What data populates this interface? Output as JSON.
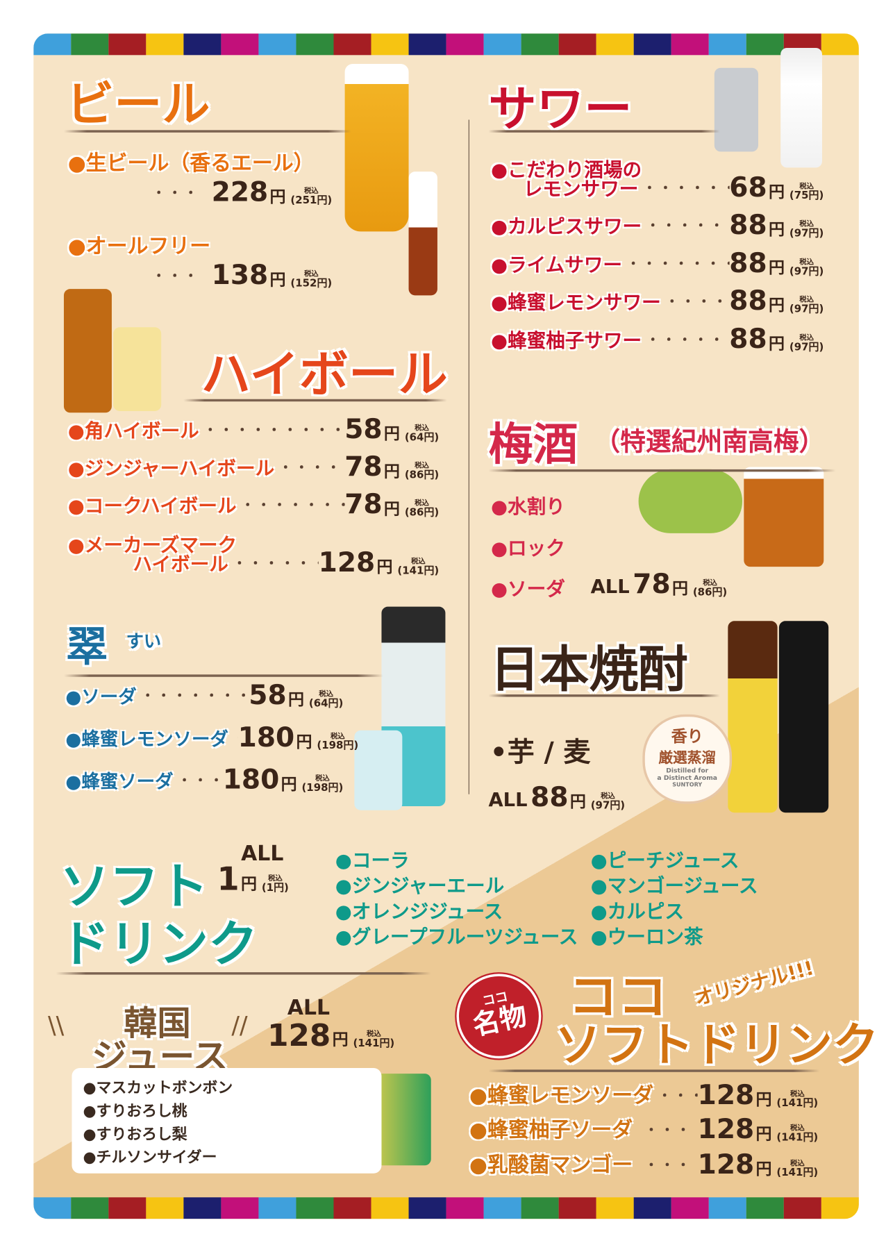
{
  "colors": {
    "stripe": [
      "#3fa0dc",
      "#2f8a3c",
      "#a51e23",
      "#f6c412",
      "#1c1f6e",
      "#c2107a"
    ],
    "beer": "#e8700f",
    "highball": "#e5461b",
    "sui": "#1b6fa0",
    "sour": "#c8102e",
    "ume": "#d4284a",
    "shochu": "#3a2418",
    "soft": "#0e9a8a",
    "korean": "#7a5530",
    "coco": "#d27312",
    "price": "#3a2418"
  },
  "common": {
    "yen": "円",
    "tax_label": "税込",
    "all": "ALL"
  },
  "beer": {
    "title": "ビール",
    "items": [
      {
        "name": "●生ビール（香るエール）",
        "price": "228",
        "tax": "(251円)"
      },
      {
        "name": "●オールフリー",
        "price": "138",
        "tax": "(152円)"
      }
    ]
  },
  "highball": {
    "title": "ハイボール",
    "items": [
      {
        "name": "●角ハイボール",
        "price": "58",
        "tax": "(64円)"
      },
      {
        "name": "●ジンジャーハイボール",
        "price": "78",
        "tax": "(86円)"
      },
      {
        "name": "●コークハイボール",
        "price": "78",
        "tax": "(86円)"
      },
      {
        "name": "●メーカーズマーク",
        "name2": "ハイボール",
        "price": "128",
        "tax": "(141円)"
      }
    ]
  },
  "sui": {
    "title": "翠",
    "reading": "すい",
    "items": [
      {
        "name": "●ソーダ",
        "price": "58",
        "tax": "(64円)"
      },
      {
        "name": "●蜂蜜レモンソーダ",
        "price": "180",
        "tax": "(198円)"
      },
      {
        "name": "●蜂蜜ソーダ",
        "price": "180",
        "tax": "(198円)"
      }
    ]
  },
  "sour": {
    "title": "サワー",
    "items": [
      {
        "name": "●こだわり酒場の",
        "name2": "レモンサワー",
        "price": "68",
        "tax": "(75円)"
      },
      {
        "name": "●カルピスサワー",
        "price": "88",
        "tax": "(97円)"
      },
      {
        "name": "●ライムサワー",
        "price": "88",
        "tax": "(97円)"
      },
      {
        "name": "●蜂蜜レモンサワー",
        "price": "88",
        "tax": "(97円)"
      },
      {
        "name": "●蜂蜜柚子サワー",
        "price": "88",
        "tax": "(97円)"
      }
    ]
  },
  "umeshu": {
    "title": "梅酒",
    "subtitle": "（特選紀州南高梅）",
    "items": [
      "●水割り",
      "●ロック",
      "●ソーダ"
    ],
    "price": "78",
    "tax": "(86円)"
  },
  "shochu": {
    "title": "日本焼酎",
    "items": "•芋 / 麦",
    "price": "88",
    "tax": "(97円)",
    "seal": [
      "香り",
      "厳選蒸溜",
      "Distilled for",
      "a Distinct Aroma",
      "SUNTORY"
    ]
  },
  "soft": {
    "title_1": "ソフト",
    "title_2": "ドリンク",
    "price": "1",
    "tax": "(1円)",
    "col1": [
      "●コーラ",
      "●ジンジャーエール",
      "●オレンジジュース",
      "●グレープフルーツジュース"
    ],
    "col2": [
      "●ピーチジュース",
      "●マンゴージュース",
      "●カルピス",
      "●ウーロン茶"
    ]
  },
  "korean": {
    "title_1": "韓国",
    "title_2": "ジュース",
    "price": "128",
    "tax": "(141円)",
    "items": [
      "●マスカットボンボン",
      "●すりおろし桃",
      "●すりおろし梨",
      "●チルソンサイダー"
    ]
  },
  "coco": {
    "badge_1": "ココ",
    "badge_2": "名物",
    "title_1": "ココ",
    "title_2": "ソフトドリンク",
    "tag": "オリジナル!!!",
    "items": [
      {
        "name": "●蜂蜜レモンソーダ",
        "price": "128",
        "tax": "(141円)"
      },
      {
        "name": "●蜂蜜柚子ソーダ",
        "price": "128",
        "tax": "(141円)"
      },
      {
        "name": "●乳酸菌マンゴー",
        "price": "128",
        "tax": "(141円)"
      }
    ]
  }
}
